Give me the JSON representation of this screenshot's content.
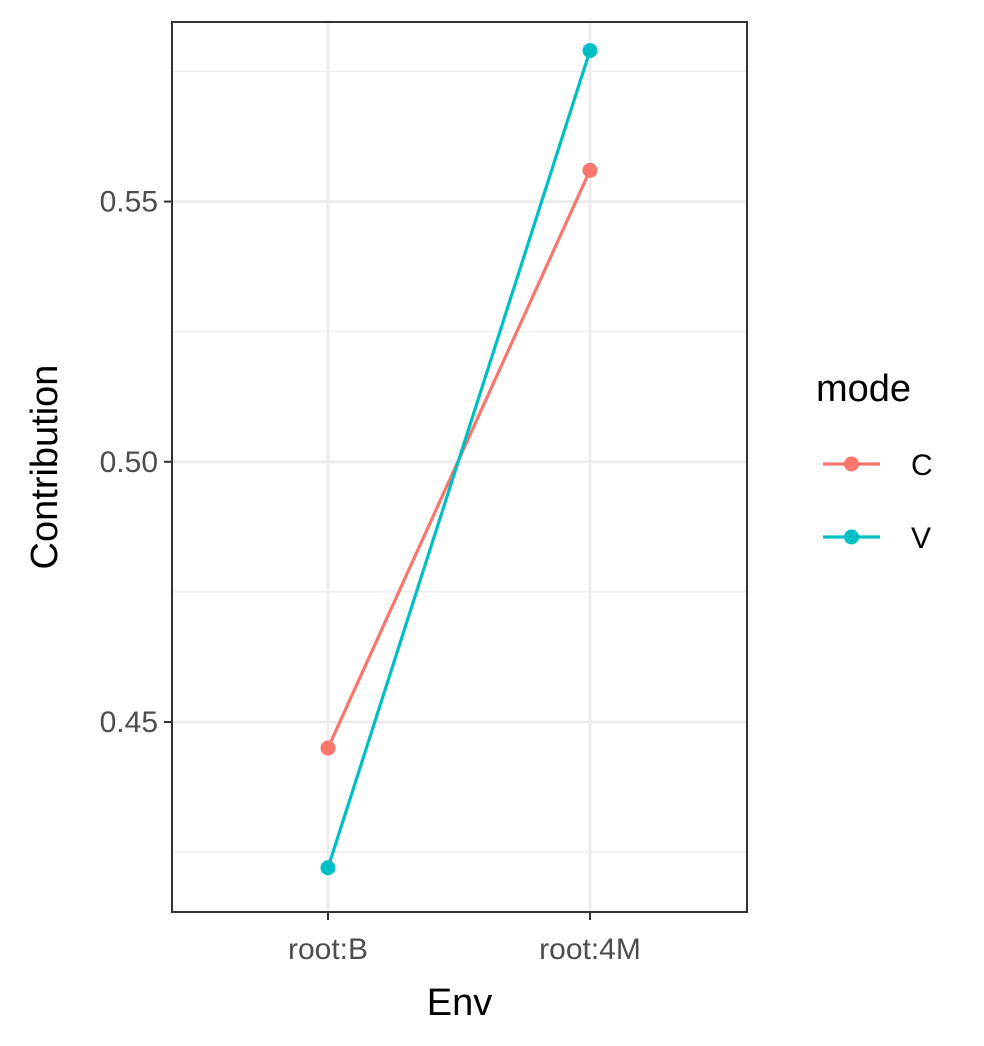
{
  "chart_data": {
    "type": "line",
    "title": "",
    "xlabel": "Env",
    "ylabel": "Contribution",
    "categories": [
      "root:B",
      "root:4M"
    ],
    "y_ticks": [
      "0.45",
      "0.50",
      "0.55"
    ],
    "ylim": [
      0.4135,
      0.5845
    ],
    "grid": true,
    "legend": {
      "title": "mode",
      "position": "right"
    },
    "series": [
      {
        "name": "C",
        "color": "#F8766D",
        "values": [
          0.445,
          0.556
        ]
      },
      {
        "name": "V",
        "color": "#00BFC4",
        "values": [
          0.422,
          0.579
        ]
      }
    ]
  }
}
